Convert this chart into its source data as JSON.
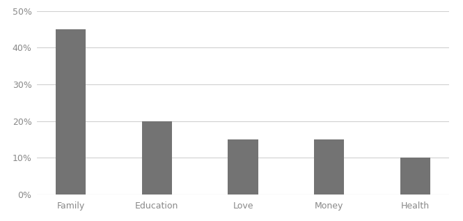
{
  "categories": [
    "Family",
    "Education",
    "Love",
    "Money",
    "Health"
  ],
  "values": [
    0.45,
    0.2,
    0.15,
    0.15,
    0.1
  ],
  "bar_color": "#737373",
  "ylim": [
    0,
    0.5
  ],
  "yticks": [
    0.0,
    0.1,
    0.2,
    0.3,
    0.4,
    0.5
  ],
  "ytick_labels": [
    "0%",
    "10%",
    "20%",
    "30%",
    "40%",
    "50%"
  ],
  "background_color": "#ffffff",
  "grid_color": "#d0d0d0",
  "bar_width": 0.35
}
